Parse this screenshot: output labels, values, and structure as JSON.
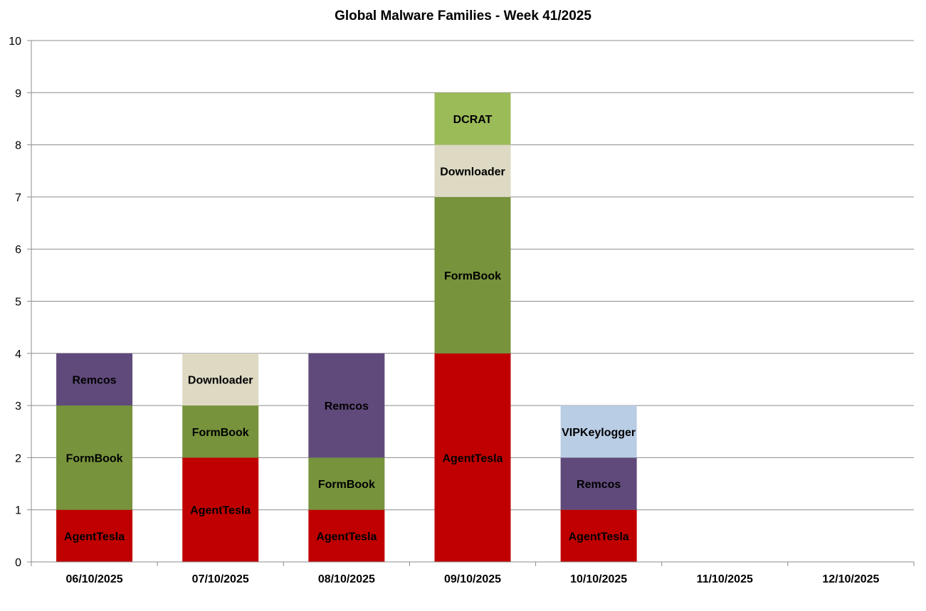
{
  "chart_data": {
    "type": "bar",
    "stacked": true,
    "title": "Global Malware Families - Week 41/2025",
    "xlabel": "",
    "ylabel": "",
    "ylim": [
      0,
      10
    ],
    "yticks": [
      "0",
      "1",
      "2",
      "3",
      "4",
      "5",
      "6",
      "7",
      "8",
      "9",
      "10"
    ],
    "grid": true,
    "legend": "none",
    "categories": [
      "06/10/2025",
      "07/10/2025",
      "08/10/2025",
      "09/10/2025",
      "10/10/2025",
      "11/10/2025",
      "12/10/2025"
    ],
    "series": [
      {
        "name": "AgentTesla",
        "color": "#C00000",
        "label_color": "#000000",
        "values": [
          1,
          2,
          1,
          4,
          1,
          0,
          0
        ]
      },
      {
        "name": "FormBook",
        "color": "#77933C",
        "label_color": "#000000",
        "values": [
          2,
          1,
          1,
          3,
          0,
          0,
          0
        ]
      },
      {
        "name": "Remcos",
        "color": "#604A7B",
        "label_color": "#000000",
        "values": [
          1,
          0,
          2,
          0,
          1,
          0,
          0
        ]
      },
      {
        "name": "Downloader",
        "color": "#DDD9C3",
        "label_color": "#000000",
        "values": [
          0,
          1,
          0,
          1,
          0,
          0,
          0
        ]
      },
      {
        "name": "DCRAT",
        "color": "#9BBB59",
        "label_color": "#000000",
        "values": [
          0,
          0,
          0,
          1,
          0,
          0,
          0
        ]
      },
      {
        "name": "VIPKeylogger",
        "color": "#B9CDE5",
        "label_color": "#000000",
        "values": [
          0,
          0,
          0,
          0,
          1,
          0,
          0
        ]
      }
    ]
  }
}
